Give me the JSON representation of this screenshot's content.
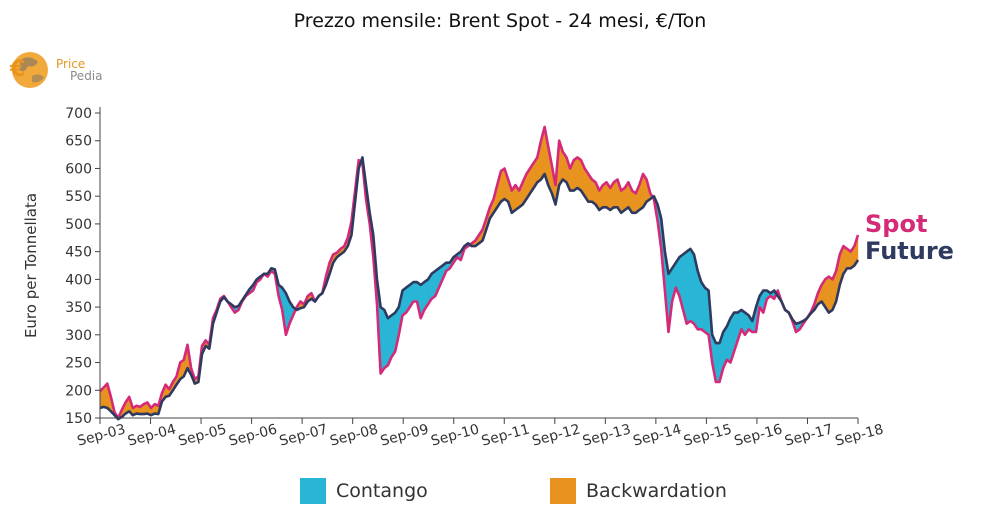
{
  "chart_data": {
    "type": "area",
    "title": "Prezzo mensile: Brent Spot - 24 mesi, €/Ton",
    "ylabel": "Euro per Tonnellata",
    "xlabel": "",
    "ylim": [
      150,
      700
    ],
    "yticks": [
      150,
      200,
      250,
      300,
      350,
      400,
      450,
      500,
      550,
      600,
      650,
      700
    ],
    "xticks": [
      "Sep-03",
      "Sep-04",
      "Sep-05",
      "Sep-06",
      "Sep-07",
      "Sep-08",
      "Sep-09",
      "Sep-10",
      "Sep-11",
      "Sep-12",
      "Sep-13",
      "Sep-14",
      "Sep-15",
      "Sep-16",
      "Sep-17",
      "Sep-18"
    ],
    "x_start": "Sep-03",
    "series": [
      {
        "name": "Spot",
        "color": "#d42a78",
        "values": [
          198,
          205,
          212,
          188,
          160,
          150,
          165,
          178,
          188,
          168,
          172,
          170,
          175,
          178,
          168,
          175,
          172,
          195,
          210,
          202,
          215,
          225,
          250,
          255,
          282,
          240,
          220,
          225,
          280,
          290,
          282,
          330,
          345,
          365,
          370,
          360,
          350,
          340,
          345,
          360,
          370,
          375,
          380,
          395,
          400,
          410,
          405,
          415,
          410,
          370,
          345,
          300,
          320,
          335,
          350,
          360,
          355,
          370,
          375,
          360,
          370,
          375,
          405,
          430,
          445,
          448,
          455,
          460,
          475,
          505,
          560,
          615,
          610,
          545,
          500,
          440,
          355,
          230,
          240,
          245,
          260,
          270,
          300,
          335,
          340,
          350,
          360,
          360,
          330,
          345,
          355,
          365,
          370,
          385,
          400,
          415,
          420,
          430,
          440,
          435,
          455,
          460,
          465,
          470,
          480,
          490,
          510,
          530,
          545,
          570,
          595,
          600,
          580,
          560,
          570,
          560,
          575,
          590,
          600,
          610,
          620,
          650,
          675,
          640,
          605,
          570,
          650,
          630,
          620,
          600,
          615,
          620,
          615,
          600,
          590,
          580,
          575,
          560,
          570,
          575,
          565,
          575,
          580,
          560,
          565,
          575,
          560,
          555,
          570,
          590,
          580,
          555,
          545,
          505,
          455,
          380,
          305,
          360,
          385,
          370,
          345,
          320,
          325,
          320,
          310,
          310,
          305,
          300,
          250,
          215,
          215,
          240,
          255,
          250,
          270,
          290,
          310,
          300,
          310,
          305,
          305,
          350,
          340,
          365,
          370,
          365,
          380,
          360,
          345,
          340,
          325,
          305,
          310,
          320,
          330,
          340,
          355,
          375,
          390,
          400,
          405,
          400,
          415,
          445,
          460,
          455,
          450,
          460,
          480
        ]
      },
      {
        "name": "Future",
        "color": "#2e3a5f",
        "values": [
          168,
          170,
          168,
          162,
          155,
          148,
          152,
          158,
          162,
          155,
          158,
          157,
          157,
          158,
          155,
          158,
          157,
          180,
          188,
          190,
          200,
          210,
          220,
          225,
          240,
          228,
          212,
          215,
          265,
          280,
          275,
          320,
          340,
          360,
          368,
          360,
          355,
          350,
          352,
          362,
          372,
          382,
          390,
          400,
          405,
          410,
          410,
          420,
          418,
          390,
          385,
          375,
          360,
          350,
          345,
          348,
          350,
          360,
          365,
          360,
          370,
          375,
          390,
          410,
          430,
          440,
          445,
          450,
          460,
          480,
          540,
          600,
          620,
          570,
          520,
          480,
          400,
          350,
          345,
          330,
          335,
          340,
          350,
          380,
          385,
          390,
          395,
          395,
          390,
          395,
          400,
          410,
          415,
          420,
          425,
          430,
          430,
          440,
          445,
          450,
          460,
          465,
          460,
          460,
          465,
          470,
          490,
          510,
          520,
          530,
          540,
          545,
          540,
          520,
          525,
          530,
          535,
          545,
          555,
          565,
          575,
          580,
          590,
          570,
          555,
          535,
          570,
          580,
          575,
          560,
          560,
          565,
          560,
          550,
          540,
          540,
          535,
          525,
          530,
          530,
          525,
          530,
          530,
          520,
          525,
          530,
          520,
          520,
          525,
          530,
          540,
          545,
          550,
          535,
          510,
          450,
          410,
          420,
          430,
          440,
          445,
          450,
          455,
          445,
          415,
          395,
          385,
          380,
          300,
          285,
          285,
          305,
          315,
          330,
          340,
          340,
          345,
          340,
          335,
          325,
          350,
          370,
          380,
          380,
          375,
          380,
          370,
          360,
          345,
          340,
          328,
          320,
          322,
          325,
          330,
          338,
          345,
          355,
          360,
          350,
          340,
          345,
          360,
          390,
          410,
          420,
          420,
          425,
          435
        ]
      }
    ],
    "legend": {
      "position": "bottom",
      "items": [
        {
          "label": "Contango",
          "color": "#29b5d5"
        },
        {
          "label": "Backwardation",
          "color": "#e8931f"
        }
      ]
    },
    "end_labels": [
      {
        "label": "Spot",
        "color": "#d42a78"
      },
      {
        "label": "Future",
        "color": "#2e3a5f"
      }
    ],
    "grid": false
  },
  "logo": {
    "line1": "Price",
    "line2": "Pedia"
  }
}
